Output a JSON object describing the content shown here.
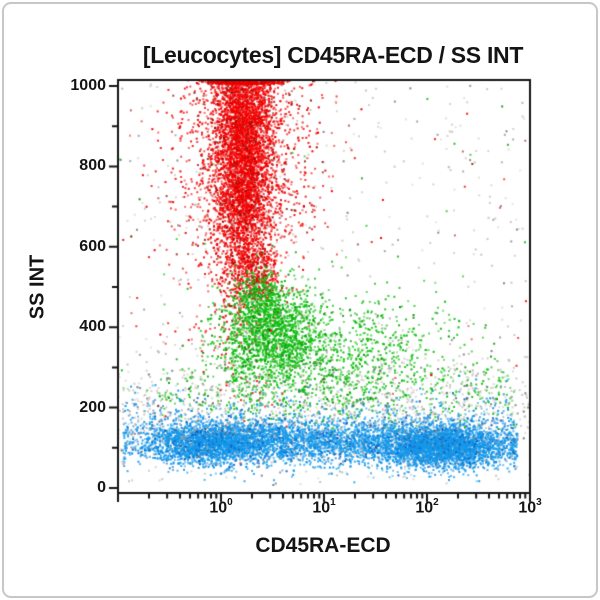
{
  "window": {
    "background": "#ffffff",
    "border_color": "#c7c7c7"
  },
  "chart_data": {
    "type": "scatter",
    "subtype": "flow_cytometry_dot_plot",
    "title": "[Leucocytes] CD45RA-ECD / SS INT",
    "xlabel": "CD45RA-ECD",
    "ylabel": "SS INT",
    "grid": false,
    "legend": false,
    "axis_color": "#141414",
    "x_scale": "log10",
    "x_domain_log10": [
      -1,
      3
    ],
    "x_ticks": [
      {
        "base": "10",
        "exp": "0",
        "log10": 0
      },
      {
        "base": "10",
        "exp": "1",
        "log10": 1
      },
      {
        "base": "10",
        "exp": "2",
        "log10": 2
      },
      {
        "base": "10",
        "exp": "3",
        "log10": 3
      }
    ],
    "y_scale": "linear",
    "y_domain": [
      -12,
      1023
    ],
    "y_ticks": [
      {
        "label": "1000",
        "value": 1000
      },
      {
        "label": "800",
        "value": 800
      },
      {
        "label": "600",
        "value": 600
      },
      {
        "label": "400",
        "value": 400
      },
      {
        "label": "200",
        "value": 200
      },
      {
        "label": "0",
        "value": 0
      }
    ],
    "y_minor_tick_values": [
      100,
      300,
      500,
      700,
      900
    ],
    "population_colors": {
      "granulocytes": "#f10000",
      "granulocytes_dark": "#8c1004",
      "monocytes": "#0cbe0c",
      "monocytes_dark": "#0a8f0a",
      "lymphocytes": "#1598e9",
      "lymphocytes_dark": "#0b5fc2",
      "debris": "#b4ada5",
      "debris_dark": "#4a4f55"
    },
    "populations": [
      {
        "name": "granulocytes-pileup",
        "gate": "granulocytes",
        "color": "#f10000",
        "alt_color": "#8c1004",
        "alt_p": 0.06,
        "n": 1100,
        "x": {
          "d": "n",
          "m": 0.22,
          "s": 0.17
        },
        "y": {
          "d": "u",
          "a": 1006,
          "b": 1023
        }
      },
      {
        "name": "granulocytes-core",
        "gate": "granulocytes",
        "color": "#f10000",
        "alt_color": "#8c1004",
        "alt_p": 0.07,
        "n": 5200,
        "x": {
          "d": "n",
          "m": 0.22,
          "s": 0.14
        },
        "y": {
          "d": "n",
          "m": 870,
          "s": 190
        },
        "y_pile_above": 1005,
        "y_pile_max": 1023
      },
      {
        "name": "granulocytes-halo",
        "gate": "granulocytes",
        "color": "#f10000",
        "alt_color": "#8c1004",
        "alt_p": 0.1,
        "n": 1700,
        "x": {
          "d": "n",
          "m": 0.22,
          "s": 0.36
        },
        "y": {
          "d": "n",
          "m": 820,
          "s": 225
        }
      },
      {
        "name": "granulocytes-neck",
        "gate": "granulocytes",
        "color": "#f10000",
        "alt_color": "#8c1004",
        "alt_p": 0.12,
        "n": 300,
        "x": {
          "d": "n",
          "m": 0.33,
          "s": 0.13
        },
        "y": {
          "d": "n",
          "m": 535,
          "s": 40
        }
      },
      {
        "name": "monocytes-top",
        "gate": "monocytes",
        "color": "#0cbe0c",
        "alt_color": "#0a8f0a",
        "alt_p": 0.1,
        "n": 300,
        "x": {
          "d": "n",
          "m": 0.38,
          "s": 0.12
        },
        "y": {
          "d": "n",
          "m": 480,
          "s": 30
        }
      },
      {
        "name": "monocytes-main",
        "gate": "monocytes",
        "color": "#0cbe0c",
        "alt_color": "#0a8f0a",
        "alt_p": 0.1,
        "n": 1500,
        "x": {
          "d": "n",
          "m": 0.48,
          "s": 0.26
        },
        "y": {
          "d": "n",
          "m": 380,
          "s": 62
        }
      },
      {
        "name": "monocytes-tail",
        "gate": "monocytes",
        "color": "#0cbe0c",
        "alt_color": "#0a8f0a",
        "alt_p": 0.1,
        "n": 950,
        "x": {
          "d": "n",
          "m": 1.15,
          "s": 0.55
        },
        "xc": [
          0.1,
          2.7
        ],
        "y": {
          "d": "n",
          "m": 330,
          "s": 78
        }
      },
      {
        "name": "monocytes-low",
        "gate": "monocytes",
        "color": "#0cbe0c",
        "alt_color": "#0a8f0a",
        "alt_p": 0.1,
        "n": 380,
        "x": {
          "d": "u",
          "a": -0.6,
          "b": 2.85
        },
        "y": {
          "d": "n",
          "m": 235,
          "s": 35
        }
      },
      {
        "name": "lymphocytes-left",
        "gate": "lymphocytes",
        "color": "#1598e9",
        "alt_color": "#0b5fc2",
        "alt_p": 0.12,
        "n": 2300,
        "x": {
          "d": "n",
          "m": -0.1,
          "s": 0.34
        },
        "xc": [
          -0.95,
          2.88
        ],
        "y": {
          "d": "n",
          "m": 112,
          "s": 26
        }
      },
      {
        "name": "lymphocytes-mid",
        "gate": "lymphocytes",
        "color": "#1598e9",
        "alt_color": "#0b5fc2",
        "alt_p": 0.12,
        "n": 2600,
        "x": {
          "d": "n",
          "m": 1.05,
          "s": 0.8
        },
        "xc": [
          -0.95,
          2.85
        ],
        "y": {
          "d": "n",
          "m": 116,
          "s": 30
        }
      },
      {
        "name": "lymphocytes-right",
        "gate": "lymphocytes",
        "color": "#1598e9",
        "alt_color": "#0b5fc2",
        "alt_p": 0.12,
        "n": 2900,
        "x": {
          "d": "n",
          "m": 2.15,
          "s": 0.33
        },
        "xc": [
          -0.95,
          2.88
        ],
        "y": {
          "d": "n",
          "m": 103,
          "s": 26
        }
      },
      {
        "name": "lymphocytes-halo",
        "gate": "lymphocytes",
        "color": "#1598e9",
        "alt_color": "#0b5fc2",
        "alt_p": 0.15,
        "n": 450,
        "x": {
          "d": "u",
          "a": -0.95,
          "b": 2.85
        },
        "y": {
          "d": "n",
          "m": 165,
          "s": 40
        }
      },
      {
        "name": "debris-band",
        "gate": "debris",
        "color": "#b4ada5",
        "alt_color": "#4a4f55",
        "alt_p": 0.18,
        "n": 900,
        "x": {
          "d": "u",
          "a": -1,
          "b": 3
        },
        "y": {
          "d": "n",
          "m": 205,
          "s": 70
        },
        "alpha": [
          0.35,
          0.4
        ]
      },
      {
        "name": "debris-sparse",
        "gate": "debris",
        "color": "#b4ada5",
        "alt_color": "#4a4f55",
        "alt_p": 0.18,
        "n": 450,
        "x": {
          "d": "u",
          "a": -1,
          "b": 3
        },
        "y": {
          "d": "u",
          "a": 10,
          "b": 1010
        },
        "alpha": [
          0.3,
          0.4
        ]
      },
      {
        "name": "outliers-red",
        "gate": "granulocytes",
        "color": "#f10000",
        "alt_color": "#8c1004",
        "alt_p": 0.3,
        "n": 40,
        "x": {
          "d": "u",
          "a": -1,
          "b": 3
        },
        "y": {
          "d": "u",
          "a": 200,
          "b": 1015
        }
      },
      {
        "name": "outliers-green",
        "gate": "monocytes",
        "color": "#0cbe0c",
        "alt_color": "#0a8f0a",
        "alt_p": 0.2,
        "n": 35,
        "x": {
          "d": "u",
          "a": -1,
          "b": 3
        },
        "y": {
          "d": "u",
          "a": 150,
          "b": 1000
        }
      }
    ]
  }
}
